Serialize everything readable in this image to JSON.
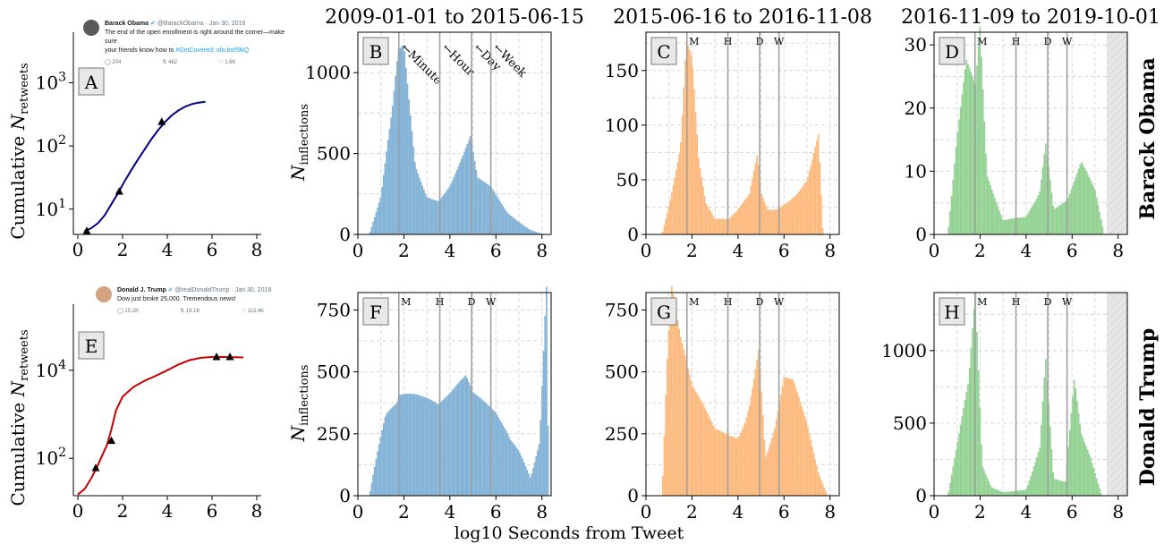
{
  "column_titles": [
    "2009-01-01 to 2015-06-15",
    "2015-06-16 to 2016-11-08",
    "2016-11-09 to 2019-10-01"
  ],
  "row_labels": [
    "Barack Obama",
    "Donald Trump"
  ],
  "xlabel_shared": "log10 Seconds from Tweet",
  "marker_labels_long": [
    "←Minute",
    "←Hour",
    "←Day",
    "←Week"
  ],
  "marker_labels_short": [
    "M",
    "H",
    "D",
    "W"
  ],
  "colors": {
    "blue": "#82b2d6",
    "orange": "#fdba7e",
    "green": "#94d294",
    "obama_line": "#00008b",
    "trump_line": "#c80000",
    "marker_line": "#a0a0a0"
  },
  "tweets": {
    "obama": {
      "name": "Barack Obama",
      "handle": "@BarackObama · Jan 30, 2016",
      "text1": "The end of the open enrollment is right around the corner—make sure",
      "text2": "your friends know how to ",
      "link": "#GetCovered: ofa.bo/f9kQ",
      "replies": "204",
      "retweets": "462",
      "likes": "1.6K"
    },
    "trump": {
      "name": "Donald J. Trump",
      "handle": "@realDonaldTrump · Jan 30, 2019",
      "text1": "Dow just broke 25,000. Tremendous news!",
      "replies": "15.2K",
      "retweets": "19.1K",
      "likes": "113.4K"
    }
  },
  "chart_data": [
    {
      "id": "A",
      "type": "line",
      "ylabel": "Cumulative N_retweets",
      "yscale": "log",
      "xlim": [
        -0.2,
        8.2
      ],
      "ylim_log10": [
        0.6,
        3.8
      ],
      "xticks": [
        "0",
        "2",
        "4",
        "6",
        "8"
      ],
      "yticks": [
        {
          "v": 1,
          "label": "10^1"
        },
        {
          "v": 2,
          "label": "10^2"
        },
        {
          "v": 3,
          "label": "10^3"
        }
      ],
      "series": [
        {
          "color_key": "obama_line",
          "x": [
            0.3,
            0.6,
            0.9,
            1.2,
            1.5,
            1.8,
            2.1,
            2.4,
            2.7,
            3.0,
            3.3,
            3.6,
            3.9,
            4.2,
            4.5,
            4.8,
            5.1,
            5.4,
            5.7
          ],
          "y": [
            4.5,
            5.0,
            6.0,
            8.0,
            12.0,
            18.0,
            28.0,
            42.0,
            62.0,
            90.0,
            130.0,
            180.0,
            240.0,
            305.0,
            365.0,
            420.0,
            460.0,
            485.0,
            500.0
          ]
        }
      ],
      "markers": [
        {
          "x": 0.4,
          "y": 4.5
        },
        {
          "x": 1.85,
          "y": 19.0
        },
        {
          "x": 3.75,
          "y": 240.0
        }
      ]
    },
    {
      "id": "E",
      "type": "line",
      "ylabel": "Cumulative N_retweets",
      "yscale": "log",
      "xlim": [
        -0.2,
        8.2
      ],
      "ylim_log10": [
        1.15,
        5.5
      ],
      "xticks": [
        "0",
        "2",
        "4",
        "6",
        "8"
      ],
      "yticks": [
        {
          "v": 2,
          "label": "10^2"
        },
        {
          "v": 4,
          "label": "10^4"
        }
      ],
      "series": [
        {
          "color_key": "trump_line",
          "x": [
            0.0,
            0.3,
            0.6,
            0.9,
            1.1,
            1.3,
            1.5,
            1.7,
            2.0,
            2.5,
            3.0,
            3.5,
            4.0,
            4.5,
            5.0,
            5.5,
            6.0,
            6.5,
            7.0,
            7.4
          ],
          "y": [
            15.0,
            20.0,
            35.0,
            70.0,
            120.0,
            200.0,
            450.0,
            1200.0,
            2500.0,
            4200.0,
            5800.0,
            7500.0,
            10000.0,
            13500.0,
            17000.0,
            19200.0,
            20000.0,
            20000.0,
            19800.0,
            19500.0
          ]
        }
      ],
      "markers": [
        {
          "x": 0.8,
          "y": 60.0
        },
        {
          "x": 1.5,
          "y": 250.0
        },
        {
          "x": 6.2,
          "y": 20000.0
        },
        {
          "x": 6.8,
          "y": 20000.0
        }
      ]
    },
    {
      "id": "B",
      "type": "bar",
      "color_key": "blue",
      "xlim": [
        0,
        8.4
      ],
      "ylim": [
        0,
        1250
      ],
      "ylabel": "N_inflections",
      "xticks": [
        "0",
        "2",
        "4",
        "6",
        "8"
      ],
      "yticks": [
        0,
        500,
        1000
      ],
      "markers": "long",
      "x": [
        0.5,
        1.0,
        1.5,
        1.75,
        2.0,
        2.25,
        2.5,
        3.0,
        3.5,
        4.0,
        4.5,
        4.9,
        5.2,
        5.8,
        6.5,
        7.5,
        8.1
      ],
      "values": [
        0,
        200,
        700,
        1050,
        1130,
        800,
        450,
        280,
        220,
        290,
        420,
        530,
        300,
        250,
        120,
        30,
        0
      ]
    },
    {
      "id": "C",
      "type": "bar",
      "color_key": "orange",
      "xlim": [
        0,
        8.4
      ],
      "ylim": [
        0,
        185
      ],
      "xticks": [
        "0",
        "2",
        "4",
        "6",
        "8"
      ],
      "yticks": [
        0,
        50,
        100,
        150
      ],
      "markers": "short",
      "x": [
        0.7,
        1.0,
        1.5,
        1.75,
        2.0,
        2.3,
        2.6,
        3.0,
        3.6,
        4.0,
        4.5,
        4.85,
        5.0,
        5.3,
        6.0,
        6.5,
        7.0,
        7.5,
        7.7
      ],
      "values": [
        0,
        30,
        80,
        170,
        150,
        60,
        25,
        12,
        12,
        20,
        35,
        75,
        40,
        25,
        30,
        35,
        45,
        80,
        0
      ]
    },
    {
      "id": "D",
      "type": "bar",
      "color_key": "green",
      "xlim": [
        0,
        8.4
      ],
      "ylim": [
        0,
        32
      ],
      "xticks": [
        "0",
        "2",
        "4",
        "6",
        "8"
      ],
      "yticks": [
        0,
        10,
        20,
        30
      ],
      "shade_from": 7.5,
      "markers": "short",
      "x": [
        0.6,
        1.0,
        1.4,
        1.8,
        2.0,
        2.3,
        3.0,
        4.0,
        4.6,
        4.85,
        5.2,
        5.8,
        6.4,
        7.0,
        7.4
      ],
      "values": [
        0,
        14,
        24,
        20,
        28,
        8,
        2,
        3,
        8,
        16,
        4,
        5,
        10,
        6,
        0
      ]
    },
    {
      "id": "F",
      "type": "bar",
      "color_key": "blue",
      "xlim": [
        0,
        8.4
      ],
      "ylim": [
        0,
        820
      ],
      "ylabel": "N_inflections",
      "xticks": [
        "0",
        "2",
        "4",
        "6",
        "8"
      ],
      "yticks": [
        0,
        250,
        500,
        750
      ],
      "markers": "short",
      "x": [
        0.5,
        0.8,
        1.2,
        1.8,
        2.2,
        2.8,
        3.5,
        4.0,
        4.7,
        5.0,
        5.5,
        6.0,
        6.5,
        7.0,
        7.5,
        7.9,
        8.2,
        8.3
      ],
      "values": [
        0,
        150,
        350,
        480,
        440,
        380,
        320,
        350,
        420,
        370,
        360,
        350,
        300,
        200,
        70,
        200,
        770,
        0
      ]
    },
    {
      "id": "G",
      "type": "bar",
      "color_key": "orange",
      "xlim": [
        0,
        8.4
      ],
      "ylim": [
        0,
        820
      ],
      "xticks": [
        "0",
        "2",
        "4",
        "6",
        "8"
      ],
      "yticks": [
        0,
        250,
        500,
        750
      ],
      "markers": "short",
      "x": [
        0.7,
        0.9,
        1.1,
        1.5,
        2.0,
        2.5,
        3.0,
        3.6,
        4.0,
        4.5,
        4.9,
        5.2,
        5.6,
        6.0,
        6.4,
        7.0,
        7.5,
        7.9
      ],
      "values": [
        0,
        450,
        750,
        550,
        380,
        320,
        250,
        250,
        260,
        420,
        620,
        150,
        250,
        420,
        400,
        250,
        80,
        0
      ]
    },
    {
      "id": "H",
      "type": "bar",
      "color_key": "green",
      "xlim": [
        0,
        8.4
      ],
      "ylim": [
        0,
        1400
      ],
      "xticks": [
        "0",
        "2",
        "4",
        "6",
        "8"
      ],
      "yticks": [
        0,
        500,
        1000
      ],
      "shade_from": 7.5,
      "markers": "short",
      "x": [
        0.6,
        1.0,
        1.5,
        1.8,
        2.1,
        2.5,
        3.0,
        4.0,
        4.6,
        4.85,
        5.2,
        5.7,
        6.1,
        6.4,
        6.8,
        7.3
      ],
      "values": [
        0,
        300,
        700,
        1300,
        200,
        60,
        30,
        40,
        300,
        840,
        100,
        80,
        700,
        380,
        250,
        0
      ]
    }
  ]
}
